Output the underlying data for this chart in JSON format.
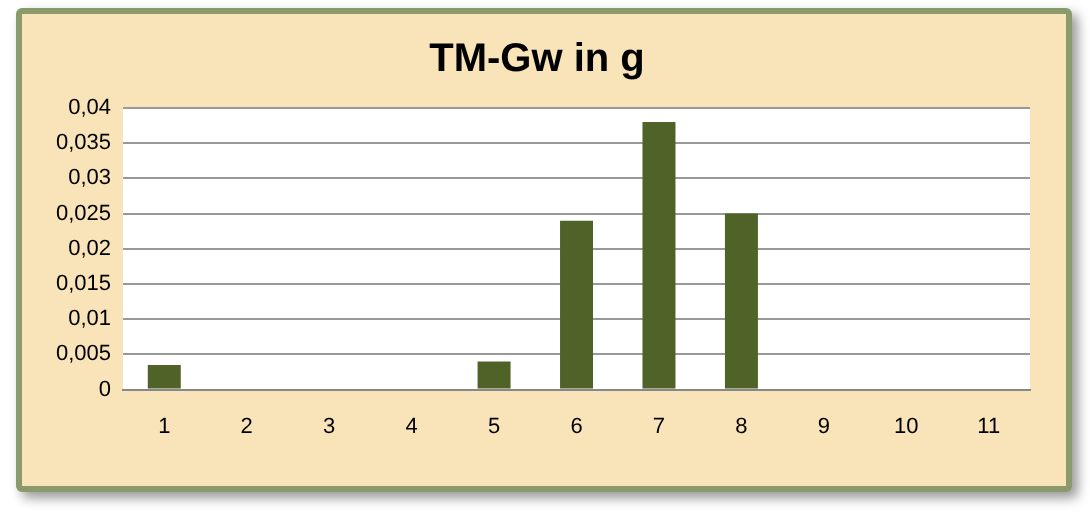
{
  "chart_data": {
    "type": "bar",
    "title": "TM-Gw in g",
    "categories": [
      "1",
      "2",
      "3",
      "4",
      "5",
      "6",
      "7",
      "8",
      "9",
      "10",
      "11"
    ],
    "values": [
      0.0035,
      0,
      0,
      0,
      0.004,
      0.024,
      0.038,
      0.025,
      0,
      0,
      0
    ],
    "color": "#4f6228",
    "ylim": [
      0,
      0.04
    ],
    "yticks": [
      0,
      {
        "value": 0.005,
        "label": "0,005"
      },
      {
        "value": 0.01,
        "label": "0,01"
      },
      {
        "value": 0.015,
        "label": "0,015"
      },
      {
        "value": 0.02,
        "label": "0,02"
      },
      {
        "value": 0.025,
        "label": "0,025"
      },
      {
        "value": 0.03,
        "label": "0,03"
      },
      {
        "value": 0.035,
        "label": "0,035"
      },
      {
        "value": 0.04,
        "label": "0,04"
      }
    ],
    "grid": "y",
    "legend": false
  }
}
